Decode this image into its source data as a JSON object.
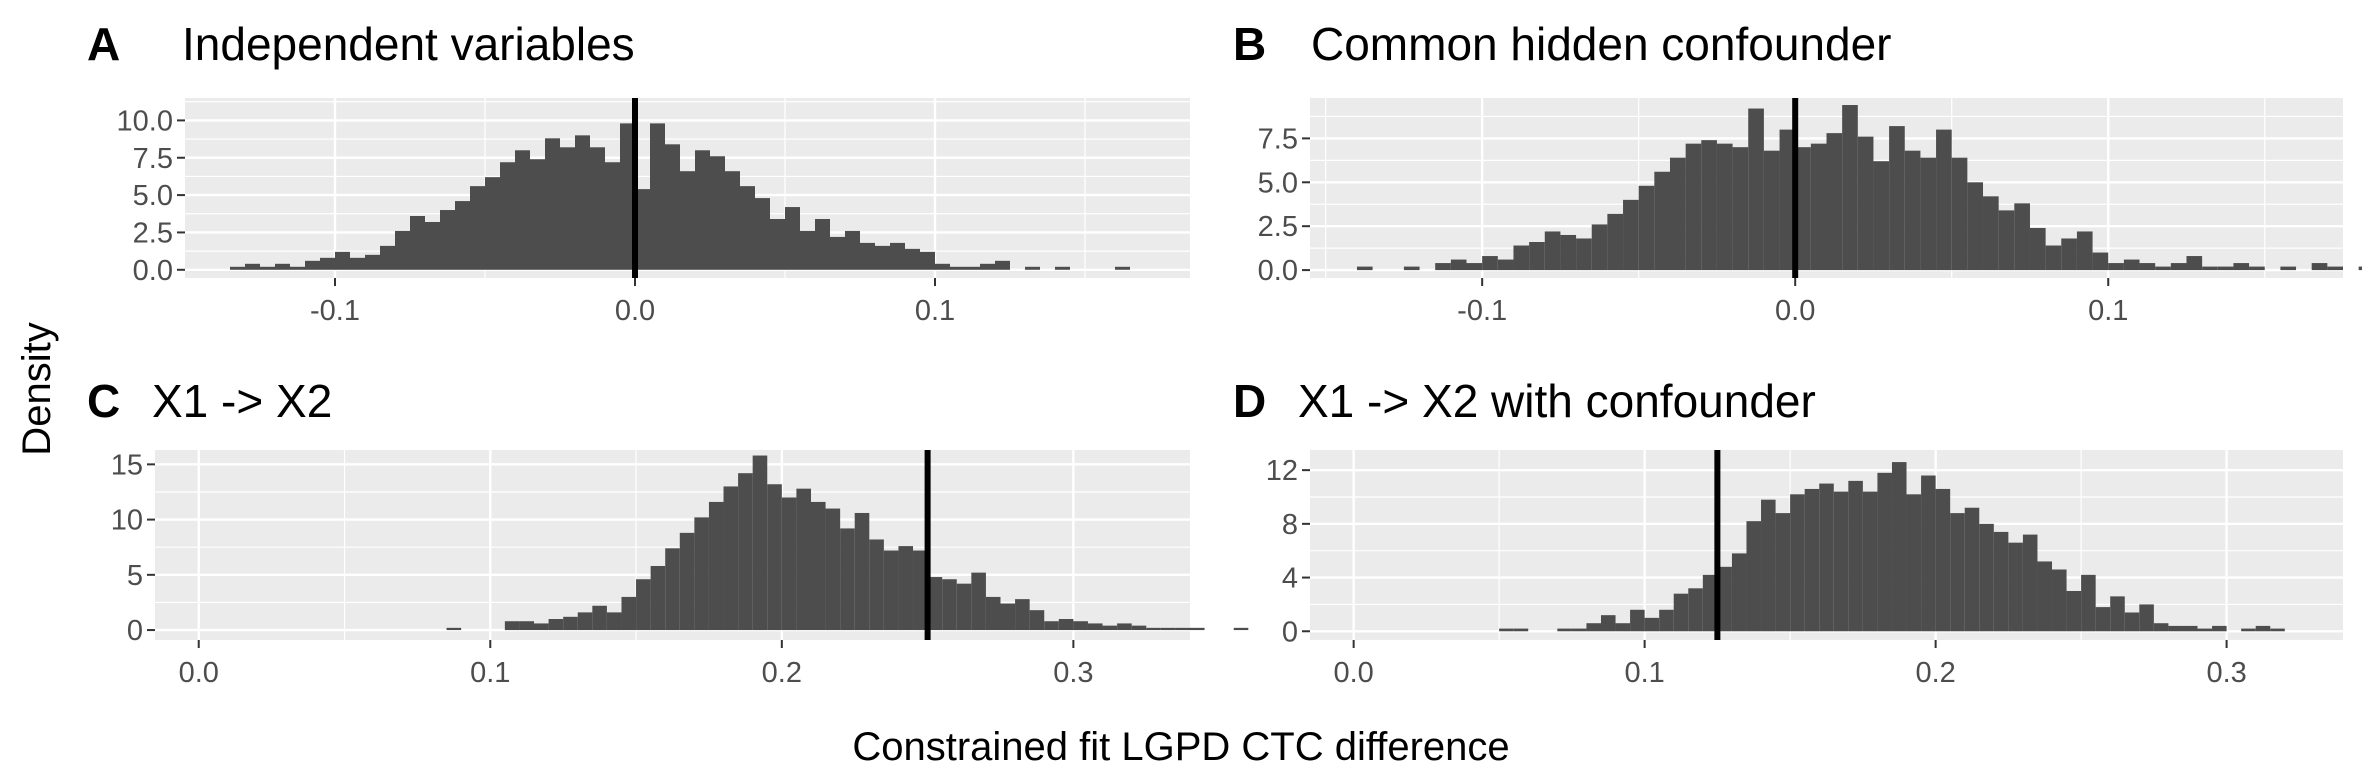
{
  "figure": {
    "xlabel": "Constrained fit LGPD CTC difference",
    "ylabel": "Density",
    "colors": {
      "panel_bg": "#ebebeb",
      "grid_major": "#ffffff",
      "bar": "#4d4d4d",
      "vline": "#000000",
      "tick_text": "#4d4d4d"
    }
  },
  "chart_data": [
    {
      "type": "bar",
      "panel": "A",
      "title": "Independent variables",
      "xlim": [
        -0.15,
        0.185
      ],
      "ylim": [
        -0.55,
        11.5
      ],
      "x_ticks": [
        -0.1,
        0.0,
        0.1
      ],
      "x_tick_labels": [
        "-0.1",
        "0.0",
        "0.1"
      ],
      "y_ticks": [
        0,
        2.5,
        5,
        7.5,
        10
      ],
      "y_tick_labels": [
        "0.0",
        "2.5",
        "5.0",
        "7.5",
        "10.0"
      ],
      "vline": 0.0,
      "bin_width": 0.005,
      "bin_start": -0.135,
      "values": [
        0.2,
        0.4,
        0.2,
        0.4,
        0.2,
        0.6,
        0.8,
        1.2,
        0.8,
        1.0,
        1.6,
        2.6,
        3.6,
        3.2,
        4.0,
        4.6,
        5.6,
        6.2,
        7.2,
        8.0,
        7.4,
        8.8,
        8.2,
        9.0,
        8.2,
        7.2,
        9.8,
        5.4,
        9.8,
        8.4,
        6.6,
        8.0,
        7.6,
        6.6,
        5.6,
        4.8,
        3.4,
        4.2,
        2.6,
        3.4,
        2.2,
        2.6,
        1.8,
        1.6,
        1.8,
        1.4,
        1.2,
        0.4,
        0.2,
        0.2,
        0.4,
        0.6,
        0.0,
        0.2,
        0.0,
        0.2,
        0.0,
        0.0,
        0.0,
        0.2
      ]
    },
    {
      "type": "bar",
      "panel": "B",
      "title": "Common hidden confounder",
      "xlim": [
        -0.155,
        0.175
      ],
      "ylim": [
        -0.45,
        9.8
      ],
      "x_ticks": [
        -0.1,
        0.0,
        0.1
      ],
      "x_tick_labels": [
        "-0.1",
        "0.0",
        "0.1"
      ],
      "y_ticks": [
        0,
        2.5,
        5,
        7.5
      ],
      "y_tick_labels": [
        "0.0",
        "2.5",
        "5.0",
        "7.5"
      ],
      "vline": 0.0,
      "bin_width": 0.005,
      "bin_start": -0.14,
      "values": [
        0.2,
        0.0,
        0.0,
        0.2,
        0.0,
        0.4,
        0.6,
        0.4,
        0.8,
        0.6,
        1.4,
        1.6,
        2.2,
        2.0,
        1.8,
        2.6,
        3.2,
        4.0,
        4.8,
        5.6,
        6.4,
        7.2,
        7.4,
        7.2,
        7.0,
        9.2,
        6.8,
        8.0,
        7.0,
        7.2,
        7.8,
        9.4,
        7.6,
        6.2,
        8.2,
        6.8,
        6.4,
        8.0,
        6.4,
        5.0,
        4.2,
        3.4,
        3.8,
        2.4,
        1.4,
        1.8,
        2.2,
        1.0,
        0.4,
        0.6,
        0.4,
        0.2,
        0.4,
        0.8,
        0.2,
        0.2,
        0.4,
        0.2,
        0.0,
        0.2,
        0.0,
        0.4,
        0.2,
        0.0,
        0.2
      ]
    },
    {
      "type": "bar",
      "panel": "C",
      "title": "X1 -> X2",
      "xlim": [
        -0.015,
        0.34
      ],
      "ylim": [
        -0.9,
        16.3
      ],
      "x_ticks": [
        0.0,
        0.1,
        0.2,
        0.3
      ],
      "x_tick_labels": [
        "0.0",
        "0.1",
        "0.2",
        "0.3"
      ],
      "y_ticks": [
        0,
        5,
        10,
        15
      ],
      "y_tick_labels": [
        "0",
        "5",
        "10",
        "15"
      ],
      "vline": 0.25,
      "bin_width": 0.005,
      "bin_start": 0.085,
      "values": [
        0.2,
        0.0,
        0.0,
        0.0,
        0.8,
        0.8,
        0.6,
        1.0,
        1.2,
        1.6,
        2.2,
        1.6,
        3.0,
        4.6,
        5.8,
        7.4,
        8.8,
        10.2,
        11.6,
        13.0,
        14.2,
        15.8,
        13.2,
        12.0,
        12.8,
        11.6,
        11.0,
        9.2,
        10.6,
        8.2,
        7.2,
        7.6,
        7.2,
        4.8,
        4.6,
        4.2,
        5.2,
        3.0,
        2.4,
        2.8,
        1.8,
        0.8,
        1.0,
        0.8,
        0.6,
        0.4,
        0.6,
        0.4,
        0.2,
        0.2,
        0.2,
        0.2,
        0.0,
        0.0,
        0.2
      ]
    },
    {
      "type": "bar",
      "panel": "D",
      "title": "X1 -> X2 with confounder",
      "xlim": [
        -0.015,
        0.34
      ],
      "ylim": [
        -0.65,
        13.5
      ],
      "x_ticks": [
        0.0,
        0.1,
        0.2,
        0.3
      ],
      "x_tick_labels": [
        "0.0",
        "0.1",
        "0.2",
        "0.3"
      ],
      "y_ticks": [
        0,
        4,
        8,
        12
      ],
      "y_tick_labels": [
        "0",
        "4",
        "8",
        "12"
      ],
      "vline": 0.125,
      "bin_width": 0.005,
      "bin_start": 0.05,
      "values": [
        0.2,
        0.2,
        0.0,
        0.0,
        0.2,
        0.2,
        0.6,
        1.2,
        0.6,
        1.6,
        1.0,
        1.6,
        2.8,
        3.2,
        4.2,
        4.8,
        5.8,
        8.2,
        9.8,
        8.8,
        10.2,
        10.6,
        11.0,
        10.4,
        11.2,
        10.4,
        11.8,
        12.6,
        10.2,
        11.6,
        10.6,
        8.8,
        9.2,
        8.0,
        7.4,
        6.6,
        7.2,
        5.2,
        4.6,
        3.0,
        4.2,
        1.8,
        2.6,
        1.4,
        2.0,
        0.6,
        0.4,
        0.4,
        0.2,
        0.4,
        0.0,
        0.2,
        0.4,
        0.2,
        0.0
      ]
    }
  ]
}
